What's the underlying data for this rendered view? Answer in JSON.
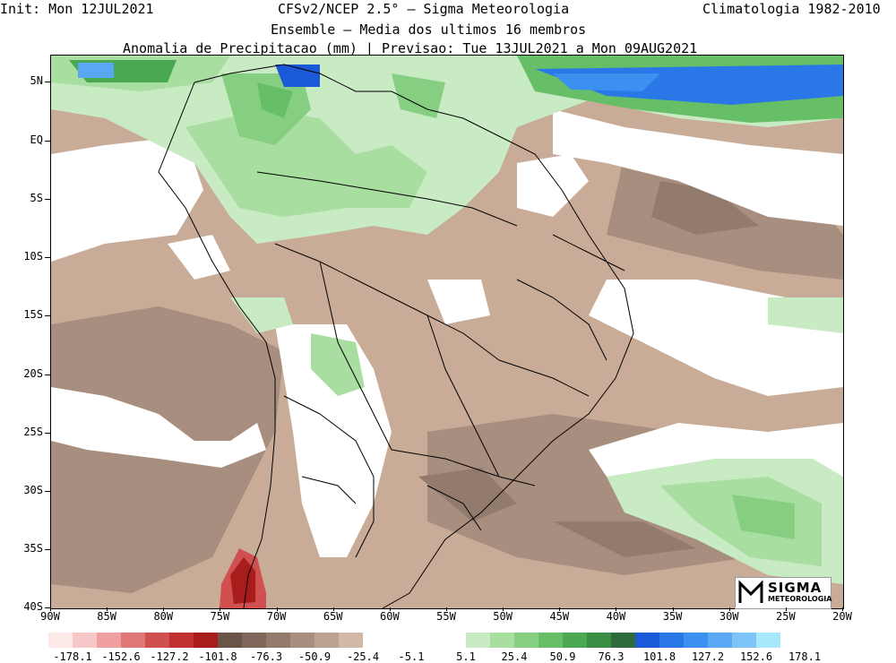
{
  "header": {
    "init": "Init: Mon 12JUL2021",
    "model": "CFSv2/NCEP 2.5° — Sigma Meteorologia",
    "climatology": "Climatologia 1982-2010",
    "ensemble": "Ensemble — Media dos ultimos 16 membros",
    "product": "Anomalia de Precipitacao (mm) | Previsao: Tue 13JUL2021 a Mon 09AUG2021"
  },
  "axes": {
    "lat_ticks": [
      "5N",
      "EQ",
      "5S",
      "10S",
      "15S",
      "20S",
      "25S",
      "30S",
      "35S",
      "40S"
    ],
    "lon_ticks": [
      "90W",
      "85W",
      "80W",
      "75W",
      "70W",
      "65W",
      "60W",
      "55W",
      "50W",
      "45W",
      "40W",
      "35W",
      "30W",
      "25W",
      "20W"
    ]
  },
  "colorbar": {
    "negative_colors": [
      "#fde8e8",
      "#f8c8c8",
      "#f0a0a0",
      "#e07878",
      "#d05050",
      "#c03030",
      "#a81c1c",
      "#6a5448",
      "#7e665a",
      "#927a6c",
      "#a88e7e",
      "#bca290",
      "#d2b8a6"
    ],
    "positive_colors": [
      "#c8ebc4",
      "#a8deA0",
      "#86cf82",
      "#66bf66",
      "#4aa852",
      "#3a8e44",
      "#2e6a3c",
      "#1a5ad8",
      "#2a78e8",
      "#3c90f0",
      "#58a8f4",
      "#7ec4f8",
      "#a8e8fc"
    ],
    "negative_labels": [
      "-178.1",
      "-152.6",
      "-127.2",
      "-101.8",
      "-76.3",
      "-50.9",
      "-25.4",
      "-5.1"
    ],
    "positive_labels": [
      "5.1",
      "25.4",
      "50.9",
      "76.3",
      "101.8",
      "127.2",
      "152.6",
      "178.1"
    ]
  },
  "logo": {
    "name": "SIGMA",
    "sub": "METEOROLOGIA"
  }
}
